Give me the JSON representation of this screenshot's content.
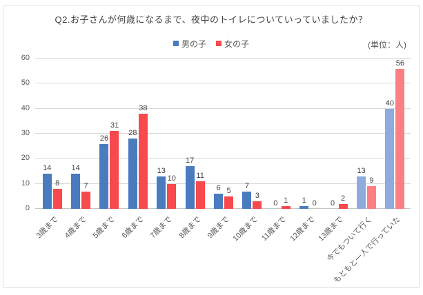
{
  "frame": {
    "border_color": "#e2e2e2",
    "background": "#ffffff"
  },
  "chart_data": {
    "type": "bar",
    "title": "Q2.お子さんが何歳になるまで、夜中のトイレについていっていましたか？",
    "unit_label": "(単位：人)",
    "legend_position": "top",
    "grid": true,
    "ylim": [
      0,
      60
    ],
    "yticks": [
      0,
      10,
      20,
      30,
      40,
      50,
      60
    ],
    "categories": [
      "3歳まで",
      "4歳まで",
      "5歳まで",
      "6歳まで",
      "7歳まで",
      "8歳まで",
      "9歳まで",
      "10歳まで",
      "11歳まで",
      "12歳まで",
      "13歳まで",
      "今でもついて行く",
      "もともと一人で行っていた"
    ],
    "series": [
      {
        "key": "boys",
        "name": "男の子",
        "color": "#4a7bbe",
        "light_color": "#8faadc",
        "values": [
          14,
          14,
          26,
          28,
          13,
          17,
          6,
          7,
          0,
          1,
          0,
          13,
          40
        ]
      },
      {
        "key": "girls",
        "name": "女の子",
        "color": "#f8494c",
        "light_color": "#fc7f83",
        "values": [
          8,
          7,
          31,
          38,
          10,
          11,
          5,
          3,
          1,
          0,
          2,
          9,
          56
        ]
      }
    ],
    "light_categories": [
      11,
      12
    ],
    "colors": {
      "gridline": "#d9d9d9",
      "axis_line": "#c6c6c6",
      "tick_text": "#595959",
      "data_label_text": "#404040",
      "title_text": "#404040"
    }
  }
}
